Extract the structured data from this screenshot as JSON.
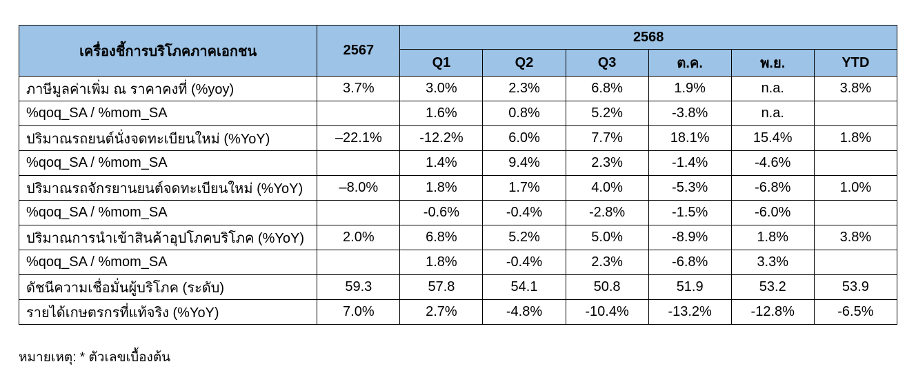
{
  "note": "หมายเหตุ: * ตัวเลขเบื้องต้น",
  "colors": {
    "header_bg": "#9DC3E6",
    "border": "#000000"
  },
  "table": {
    "header": {
      "title": "เครื่องชี้การบริโภคภาคเอกชน",
      "prev_year": "2567",
      "cur_year": "2568",
      "subcols": [
        "Q1",
        "Q2",
        "Q3",
        "ต.ค.",
        "พ.ย.",
        "YTD"
      ]
    },
    "rows": [
      {
        "label": "ภาษีมูลค่าเพิ่ม ณ ราคาคงที่ (%yoy)",
        "y2567": "3.7%",
        "values": [
          "3.0%",
          "2.3%",
          "6.8%",
          "1.9%",
          "n.a.",
          "3.8%"
        ]
      },
      {
        "label": "%qoq_SA / %mom_SA",
        "y2567": "",
        "values": [
          "1.6%",
          "0.8%",
          "5.2%",
          "-3.8%",
          "n.a.",
          ""
        ]
      },
      {
        "label": "ปริมาณรถยนต์นั่งจดทะเบียนใหม่ (%YoY)",
        "y2567": "–22.1%",
        "values": [
          "-12.2%",
          "6.0%",
          "7.7%",
          "18.1%",
          "15.4%",
          "1.8%"
        ]
      },
      {
        "label": "%qoq_SA / %mom_SA",
        "y2567": "",
        "values": [
          "1.4%",
          "9.4%",
          "2.3%",
          "-1.4%",
          "-4.6%",
          ""
        ]
      },
      {
        "label": "ปริมาณรถจักรยานยนต์จดทะเบียนใหม่ (%YoY)",
        "y2567": "–8.0%",
        "values": [
          "1.8%",
          "1.7%",
          "4.0%",
          "-5.3%",
          "-6.8%",
          "1.0%"
        ]
      },
      {
        "label": "%qoq_SA / %mom_SA",
        "y2567": "",
        "values": [
          "-0.6%",
          "-0.4%",
          "-2.8%",
          "-1.5%",
          "-6.0%",
          ""
        ]
      },
      {
        "label": "ปริมาณการนำเข้าสินค้าอุปโภคบริโภค (%YoY)",
        "y2567": "2.0%",
        "values": [
          "6.8%",
          "5.2%",
          "5.0%",
          "-8.9%",
          "1.8%",
          "3.8%"
        ]
      },
      {
        "label": "%qoq_SA / %mom_SA",
        "y2567": "",
        "values": [
          "1.8%",
          "-0.4%",
          "2.3%",
          "-6.8%",
          "3.3%",
          ""
        ]
      },
      {
        "label": "ดัชนีความเชื่อมั่นผู้บริโภค (ระดับ)",
        "y2567": "59.3",
        "values": [
          "57.8",
          "54.1",
          "50.8",
          "51.9",
          "53.2",
          "53.9"
        ]
      },
      {
        "label": "รายได้เกษตรกรที่แท้จริง (%YoY)",
        "y2567": "7.0%",
        "values": [
          "2.7%",
          "-4.8%",
          "-10.4%",
          "-13.2%",
          "-12.8%",
          "-6.5%"
        ]
      }
    ]
  }
}
